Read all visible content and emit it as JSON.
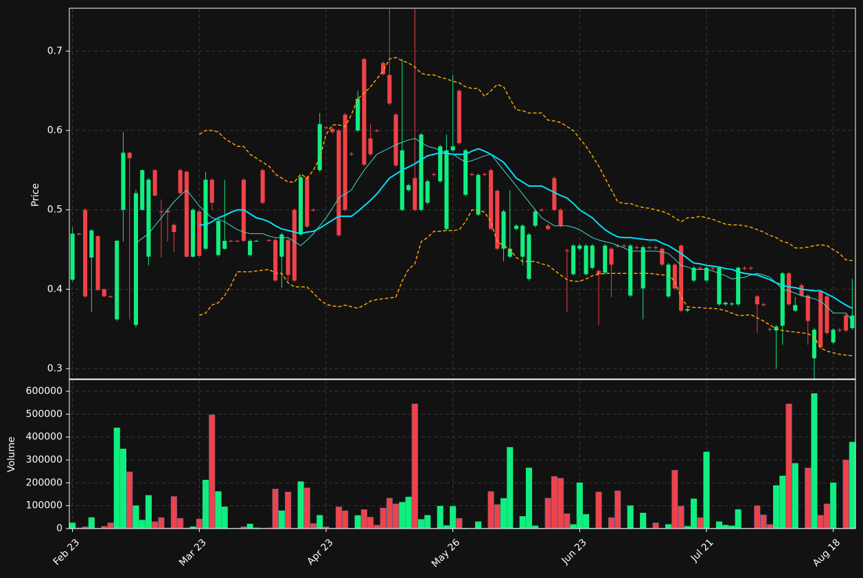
{
  "chart_data": {
    "type": "candlestick",
    "ylabel": "Price",
    "volume_label": "Volume",
    "up_color": "#10ee80",
    "down_color": "#f04248",
    "grid": true,
    "ylim": [
      0.287,
      0.754
    ],
    "yticks": [
      0.3,
      0.4,
      0.5,
      0.6,
      0.7
    ],
    "volume_ylim": [
      0,
      651000
    ],
    "volume_yticks": [
      0,
      100000,
      200000,
      300000,
      400000,
      500000,
      600000
    ],
    "categories": [
      "Feb 23",
      null,
      null,
      null,
      null,
      null,
      null,
      null,
      null,
      null,
      null,
      null,
      null,
      null,
      null,
      null,
      null,
      null,
      null,
      null,
      "Mar 23",
      null,
      null,
      null,
      null,
      null,
      null,
      null,
      null,
      null,
      null,
      null,
      null,
      null,
      null,
      null,
      null,
      null,
      null,
      null,
      "Apr 23",
      null,
      null,
      null,
      null,
      null,
      null,
      null,
      null,
      null,
      null,
      null,
      null,
      null,
      null,
      null,
      null,
      null,
      null,
      null,
      "May 26",
      null,
      null,
      null,
      null,
      null,
      null,
      null,
      null,
      null,
      null,
      null,
      null,
      null,
      null,
      null,
      null,
      null,
      null,
      null,
      "Jun 23",
      null,
      null,
      null,
      null,
      null,
      null,
      null,
      null,
      null,
      null,
      null,
      null,
      null,
      null,
      null,
      null,
      null,
      null,
      null,
      "Jul 21",
      null,
      null,
      null,
      null,
      null,
      null,
      null,
      null,
      null,
      null,
      null,
      null,
      null,
      null,
      null,
      null,
      null,
      null,
      null,
      "Aug 18",
      null,
      null,
      null
    ],
    "open": [
      0.412,
      0.47,
      0.5,
      0.44,
      0.467,
      0.4,
      0.391,
      0.362,
      0.5,
      0.572,
      0.355,
      0.5,
      0.441,
      0.55,
      0.498,
      0.499,
      0.481,
      0.55,
      0.548,
      0.441,
      0.498,
      0.451,
      0.538,
      0.443,
      0.451,
      0.461,
      0.461,
      0.538,
      0.443,
      0.461,
      0.55,
      0.462,
      0.462,
      0.441,
      0.462,
      0.5,
      0.469,
      0.541,
      0.5,
      0.55,
      0.604,
      0.602,
      0.6,
      0.62,
      0.571,
      0.6,
      0.69,
      0.59,
      0.6,
      0.685,
      0.67,
      0.62,
      0.5,
      0.525,
      0.54,
      0.5,
      0.509,
      0.545,
      0.536,
      0.476,
      0.575,
      0.65,
      0.519,
      0.545,
      0.494,
      0.545,
      0.55,
      0.524,
      0.451,
      0.441,
      0.476,
      0.441,
      0.413,
      0.48,
      0.5,
      0.48,
      0.54,
      0.5,
      0.449,
      0.419,
      0.451,
      0.419,
      0.427,
      0.423,
      0.421,
      0.451,
      0.455,
      0.455,
      0.392,
      0.453,
      0.401,
      0.453,
      0.453,
      0.451,
      0.391,
      0.431,
      0.455,
      0.373,
      0.411,
      0.427,
      0.411,
      0.427,
      0.381,
      0.381,
      0.381,
      0.381,
      0.427,
      0.427,
      0.391,
      0.381,
      0.35,
      0.348,
      0.354,
      0.42,
      0.373,
      0.405,
      0.392,
      0.313,
      0.397,
      0.391,
      0.333,
      0.349,
      0.367,
      0.351
    ],
    "high": [
      0.478,
      0.471,
      0.502,
      0.476,
      0.468,
      0.401,
      0.392,
      0.462,
      0.598,
      0.573,
      0.525,
      0.551,
      0.54,
      0.551,
      0.513,
      0.502,
      0.483,
      0.552,
      0.549,
      0.502,
      0.5,
      0.548,
      0.54,
      0.488,
      0.538,
      0.462,
      0.462,
      0.54,
      0.463,
      0.462,
      0.552,
      0.463,
      0.464,
      0.471,
      0.464,
      0.502,
      0.543,
      0.543,
      0.502,
      0.622,
      0.606,
      0.604,
      0.602,
      0.622,
      0.573,
      0.65,
      0.692,
      0.608,
      0.602,
      0.687,
      0.753,
      0.622,
      0.69,
      0.533,
      0.753,
      0.597,
      0.538,
      0.547,
      0.582,
      0.595,
      0.67,
      0.652,
      0.577,
      0.547,
      0.546,
      0.547,
      0.552,
      0.526,
      0.5,
      0.525,
      0.482,
      0.482,
      0.471,
      0.5,
      0.502,
      0.482,
      0.542,
      0.502,
      0.451,
      0.457,
      0.457,
      0.457,
      0.457,
      0.425,
      0.457,
      0.453,
      0.457,
      0.457,
      0.457,
      0.455,
      0.455,
      0.455,
      0.455,
      0.453,
      0.433,
      0.433,
      0.457,
      0.377,
      0.429,
      0.429,
      0.429,
      0.429,
      0.429,
      0.385,
      0.384,
      0.429,
      0.429,
      0.429,
      0.393,
      0.383,
      0.352,
      0.355,
      0.422,
      0.422,
      0.39,
      0.407,
      0.394,
      0.351,
      0.399,
      0.393,
      0.351,
      0.351,
      0.369,
      0.413
    ],
    "low": [
      0.41,
      0.468,
      0.389,
      0.371,
      0.398,
      0.39,
      0.389,
      0.36,
      0.46,
      0.362,
      0.352,
      0.499,
      0.43,
      0.517,
      0.44,
      0.46,
      0.447,
      0.519,
      0.44,
      0.44,
      0.441,
      0.45,
      0.5,
      0.441,
      0.45,
      0.459,
      0.459,
      0.459,
      0.441,
      0.46,
      0.507,
      0.46,
      0.409,
      0.402,
      0.41,
      0.409,
      0.467,
      0.477,
      0.498,
      0.548,
      0.601,
      0.596,
      0.466,
      0.498,
      0.568,
      0.598,
      0.555,
      0.568,
      0.598,
      0.669,
      0.632,
      0.554,
      0.498,
      0.523,
      0.498,
      0.498,
      0.507,
      0.542,
      0.534,
      0.474,
      0.573,
      0.582,
      0.517,
      0.542,
      0.492,
      0.542,
      0.474,
      0.449,
      0.435,
      0.439,
      0.474,
      0.43,
      0.411,
      0.478,
      0.498,
      0.474,
      0.498,
      0.478,
      0.371,
      0.417,
      0.449,
      0.417,
      0.425,
      0.355,
      0.419,
      0.39,
      0.452,
      0.452,
      0.39,
      0.45,
      0.362,
      0.45,
      0.45,
      0.429,
      0.389,
      0.399,
      0.371,
      0.371,
      0.409,
      0.424,
      0.409,
      0.424,
      0.379,
      0.379,
      0.379,
      0.379,
      0.424,
      0.424,
      0.345,
      0.378,
      0.347,
      0.3,
      0.33,
      0.379,
      0.371,
      0.39,
      0.33,
      0.287,
      0.325,
      0.343,
      0.331,
      0.346,
      0.346,
      0.349
    ],
    "close": [
      0.47,
      0.469,
      0.391,
      0.474,
      0.399,
      0.391,
      0.39,
      0.461,
      0.572,
      0.565,
      0.521,
      0.55,
      0.538,
      0.518,
      0.497,
      0.497,
      0.472,
      0.521,
      0.441,
      0.5,
      0.442,
      0.538,
      0.509,
      0.486,
      0.461,
      0.46,
      0.46,
      0.461,
      0.461,
      0.461,
      0.509,
      0.461,
      0.411,
      0.469,
      0.418,
      0.411,
      0.541,
      0.479,
      0.499,
      0.608,
      0.603,
      0.598,
      0.468,
      0.5,
      0.57,
      0.64,
      0.557,
      0.57,
      0.599,
      0.671,
      0.634,
      0.556,
      0.575,
      0.531,
      0.5,
      0.595,
      0.536,
      0.544,
      0.58,
      0.575,
      0.58,
      0.584,
      0.575,
      0.544,
      0.544,
      0.544,
      0.476,
      0.451,
      0.498,
      0.451,
      0.48,
      0.48,
      0.469,
      0.498,
      0.499,
      0.476,
      0.5,
      0.48,
      0.448,
      0.455,
      0.455,
      0.455,
      0.455,
      0.419,
      0.455,
      0.431,
      0.454,
      0.454,
      0.455,
      0.452,
      0.453,
      0.452,
      0.452,
      0.431,
      0.431,
      0.401,
      0.373,
      0.375,
      0.427,
      0.426,
      0.427,
      0.426,
      0.427,
      0.383,
      0.382,
      0.427,
      0.426,
      0.426,
      0.381,
      0.38,
      0.349,
      0.353,
      0.42,
      0.381,
      0.38,
      0.392,
      0.36,
      0.349,
      0.327,
      0.345,
      0.349,
      0.348,
      0.348,
      0.367
    ],
    "volume": [
      25000,
      3000,
      8000,
      48000,
      2000,
      10000,
      25000,
      440000,
      348000,
      248000,
      100000,
      37000,
      145000,
      30000,
      48000,
      3000,
      140000,
      45000,
      3000,
      8000,
      42000,
      212000,
      497000,
      162000,
      95000,
      2000,
      2000,
      8000,
      20000,
      3000,
      2000,
      3000,
      173000,
      78000,
      160000,
      2000,
      205000,
      178000,
      22000,
      58000,
      8000,
      2000,
      95000,
      78000,
      2000,
      57000,
      83000,
      50000,
      15000,
      90000,
      133000,
      108000,
      115000,
      138000,
      545000,
      40000,
      58000,
      2000,
      98000,
      13000,
      97000,
      45000,
      2000,
      2000,
      30000,
      2000,
      162000,
      105000,
      132000,
      355000,
      2000,
      53000,
      265000,
      12000,
      2000,
      133000,
      228000,
      220000,
      65000,
      18000,
      200000,
      62000,
      2000,
      160000,
      2000,
      48000,
      165000,
      2000,
      100000,
      2000,
      68000,
      2000,
      25000,
      2000,
      18000,
      255000,
      98000,
      10000,
      130000,
      48000,
      335000,
      2000,
      30000,
      15000,
      12000,
      83000,
      2000,
      2000,
      100000,
      60000,
      18000,
      188000,
      230000,
      545000,
      285000,
      2000,
      265000,
      590000,
      58000,
      108000,
      200000,
      2000,
      300000,
      378000
    ],
    "lines": [
      {
        "color": "#40e0d0",
        "width": 1,
        "dash": false,
        "values": [
          null,
          null,
          null,
          null,
          null,
          null,
          null,
          null,
          null,
          null,
          0.458,
          0.464,
          0.47,
          0.48,
          0.49,
          0.5,
          0.51,
          0.518,
          0.525,
          0.515,
          0.505,
          0.497,
          0.49,
          0.488,
          0.485,
          0.48,
          0.475,
          0.472,
          0.47,
          0.47,
          0.47,
          0.467,
          0.465,
          0.465,
          0.465,
          0.46,
          0.455,
          0.462,
          0.47,
          0.48,
          0.49,
          0.502,
          0.515,
          0.52,
          0.525,
          0.538,
          0.55,
          0.56,
          0.57,
          0.574,
          0.578,
          0.582,
          0.585,
          0.588,
          0.59,
          0.585,
          0.58,
          0.578,
          0.575,
          0.572,
          0.57,
          0.565,
          0.56,
          0.562,
          0.565,
          0.568,
          0.57,
          0.56,
          0.55,
          0.54,
          0.53,
          0.52,
          0.51,
          0.5,
          0.49,
          0.485,
          0.48,
          0.48,
          0.48,
          0.478,
          0.475,
          0.47,
          0.465,
          0.462,
          0.46,
          0.458,
          0.455,
          0.452,
          0.448,
          0.448,
          0.448,
          0.448,
          0.448,
          0.447,
          0.445,
          0.438,
          0.43,
          0.428,
          0.425,
          0.425,
          0.425,
          0.423,
          0.42,
          0.417,
          0.413,
          0.414,
          0.415,
          0.418,
          0.42,
          0.418,
          0.415,
          0.408,
          0.4,
          0.398,
          0.395,
          0.392,
          0.39,
          0.388,
          0.385,
          0.378,
          0.37,
          0.37,
          0.37,
          0.36
        ]
      },
      {
        "color": "#00e5ff",
        "width": 2,
        "dash": false,
        "values": [
          null,
          null,
          null,
          null,
          null,
          null,
          null,
          null,
          null,
          null,
          null,
          null,
          null,
          null,
          null,
          null,
          null,
          null,
          null,
          null,
          0.481,
          0.481,
          0.485,
          0.49,
          0.493,
          0.497,
          0.5,
          0.5,
          0.495,
          0.49,
          0.488,
          0.485,
          0.48,
          0.476,
          0.474,
          0.472,
          0.47,
          0.472,
          0.473,
          0.477,
          0.482,
          0.487,
          0.492,
          0.492,
          0.492,
          0.498,
          0.505,
          0.512,
          0.52,
          0.53,
          0.54,
          0.545,
          0.55,
          0.554,
          0.558,
          0.563,
          0.568,
          0.57,
          0.572,
          0.571,
          0.57,
          0.57,
          0.57,
          0.574,
          0.577,
          0.574,
          0.57,
          0.565,
          0.56,
          0.55,
          0.54,
          0.535,
          0.53,
          0.53,
          0.53,
          0.526,
          0.522,
          0.518,
          0.515,
          0.508,
          0.5,
          0.495,
          0.49,
          0.482,
          0.475,
          0.47,
          0.466,
          0.465,
          0.465,
          0.464,
          0.463,
          0.462,
          0.462,
          0.458,
          0.455,
          0.45,
          0.445,
          0.439,
          0.433,
          0.432,
          0.43,
          0.429,
          0.428,
          0.426,
          0.425,
          0.422,
          0.42,
          0.419,
          0.418,
          0.415,
          0.412,
          0.408,
          0.405,
          0.403,
          0.402,
          0.4,
          0.399,
          0.398,
          0.398,
          0.394,
          0.39,
          0.385,
          0.38,
          0.376
        ]
      },
      {
        "color": "#ffa500",
        "width": 1.5,
        "dash": true,
        "values": [
          null,
          null,
          null,
          null,
          null,
          null,
          null,
          null,
          null,
          null,
          null,
          null,
          null,
          null,
          null,
          null,
          null,
          null,
          null,
          null,
          0.595,
          0.6,
          0.6,
          0.598,
          0.59,
          0.585,
          0.58,
          0.58,
          0.57,
          0.565,
          0.56,
          0.555,
          0.545,
          0.54,
          0.535,
          0.535,
          0.545,
          0.54,
          0.55,
          0.565,
          0.595,
          0.607,
          0.607,
          0.605,
          0.62,
          0.64,
          0.647,
          0.655,
          0.665,
          0.675,
          0.69,
          0.692,
          0.688,
          0.685,
          0.68,
          0.672,
          0.67,
          0.67,
          0.667,
          0.665,
          0.662,
          0.66,
          0.655,
          0.653,
          0.653,
          0.643,
          0.65,
          0.658,
          0.655,
          0.64,
          0.626,
          0.625,
          0.622,
          0.622,
          0.622,
          0.613,
          0.612,
          0.61,
          0.605,
          0.6,
          0.59,
          0.58,
          0.568,
          0.555,
          0.54,
          0.525,
          0.51,
          0.508,
          0.508,
          0.505,
          0.503,
          0.502,
          0.5,
          0.498,
          0.495,
          0.49,
          0.485,
          0.49,
          0.49,
          0.492,
          0.49,
          0.488,
          0.485,
          0.482,
          0.481,
          0.481,
          0.48,
          0.478,
          0.475,
          0.472,
          0.468,
          0.465,
          0.46,
          0.458,
          0.452,
          0.452,
          0.453,
          0.455,
          0.456,
          0.455,
          0.45,
          0.445,
          0.437,
          0.436
        ]
      },
      {
        "color": "#ffa500",
        "width": 1.5,
        "dash": true,
        "values": [
          null,
          null,
          null,
          null,
          null,
          null,
          null,
          null,
          null,
          null,
          null,
          null,
          null,
          null,
          null,
          null,
          null,
          null,
          null,
          null,
          0.367,
          0.37,
          0.38,
          0.383,
          0.392,
          0.405,
          0.422,
          0.422,
          0.422,
          0.423,
          0.424,
          0.425,
          0.42,
          0.42,
          0.408,
          0.403,
          0.403,
          0.403,
          0.395,
          0.387,
          0.381,
          0.379,
          0.378,
          0.38,
          0.378,
          0.376,
          0.38,
          0.385,
          0.387,
          0.388,
          0.389,
          0.39,
          0.41,
          0.425,
          0.432,
          0.46,
          0.465,
          0.473,
          0.473,
          0.474,
          0.474,
          0.475,
          0.485,
          0.5,
          0.5,
          0.497,
          0.485,
          0.46,
          0.455,
          0.45,
          0.44,
          0.435,
          0.435,
          0.435,
          0.432,
          0.43,
          0.424,
          0.418,
          0.412,
          0.41,
          0.41,
          0.413,
          0.417,
          0.419,
          0.42,
          0.42,
          0.42,
          0.42,
          0.42,
          0.42,
          0.42,
          0.42,
          0.419,
          0.418,
          0.418,
          0.41,
          0.39,
          0.378,
          0.377,
          0.377,
          0.376,
          0.376,
          0.375,
          0.373,
          0.37,
          0.367,
          0.367,
          0.368,
          0.364,
          0.36,
          0.355,
          0.35,
          0.348,
          0.347,
          0.346,
          0.345,
          0.344,
          0.34,
          0.326,
          0.322,
          0.32,
          0.318,
          0.317,
          0.316
        ]
      }
    ]
  }
}
